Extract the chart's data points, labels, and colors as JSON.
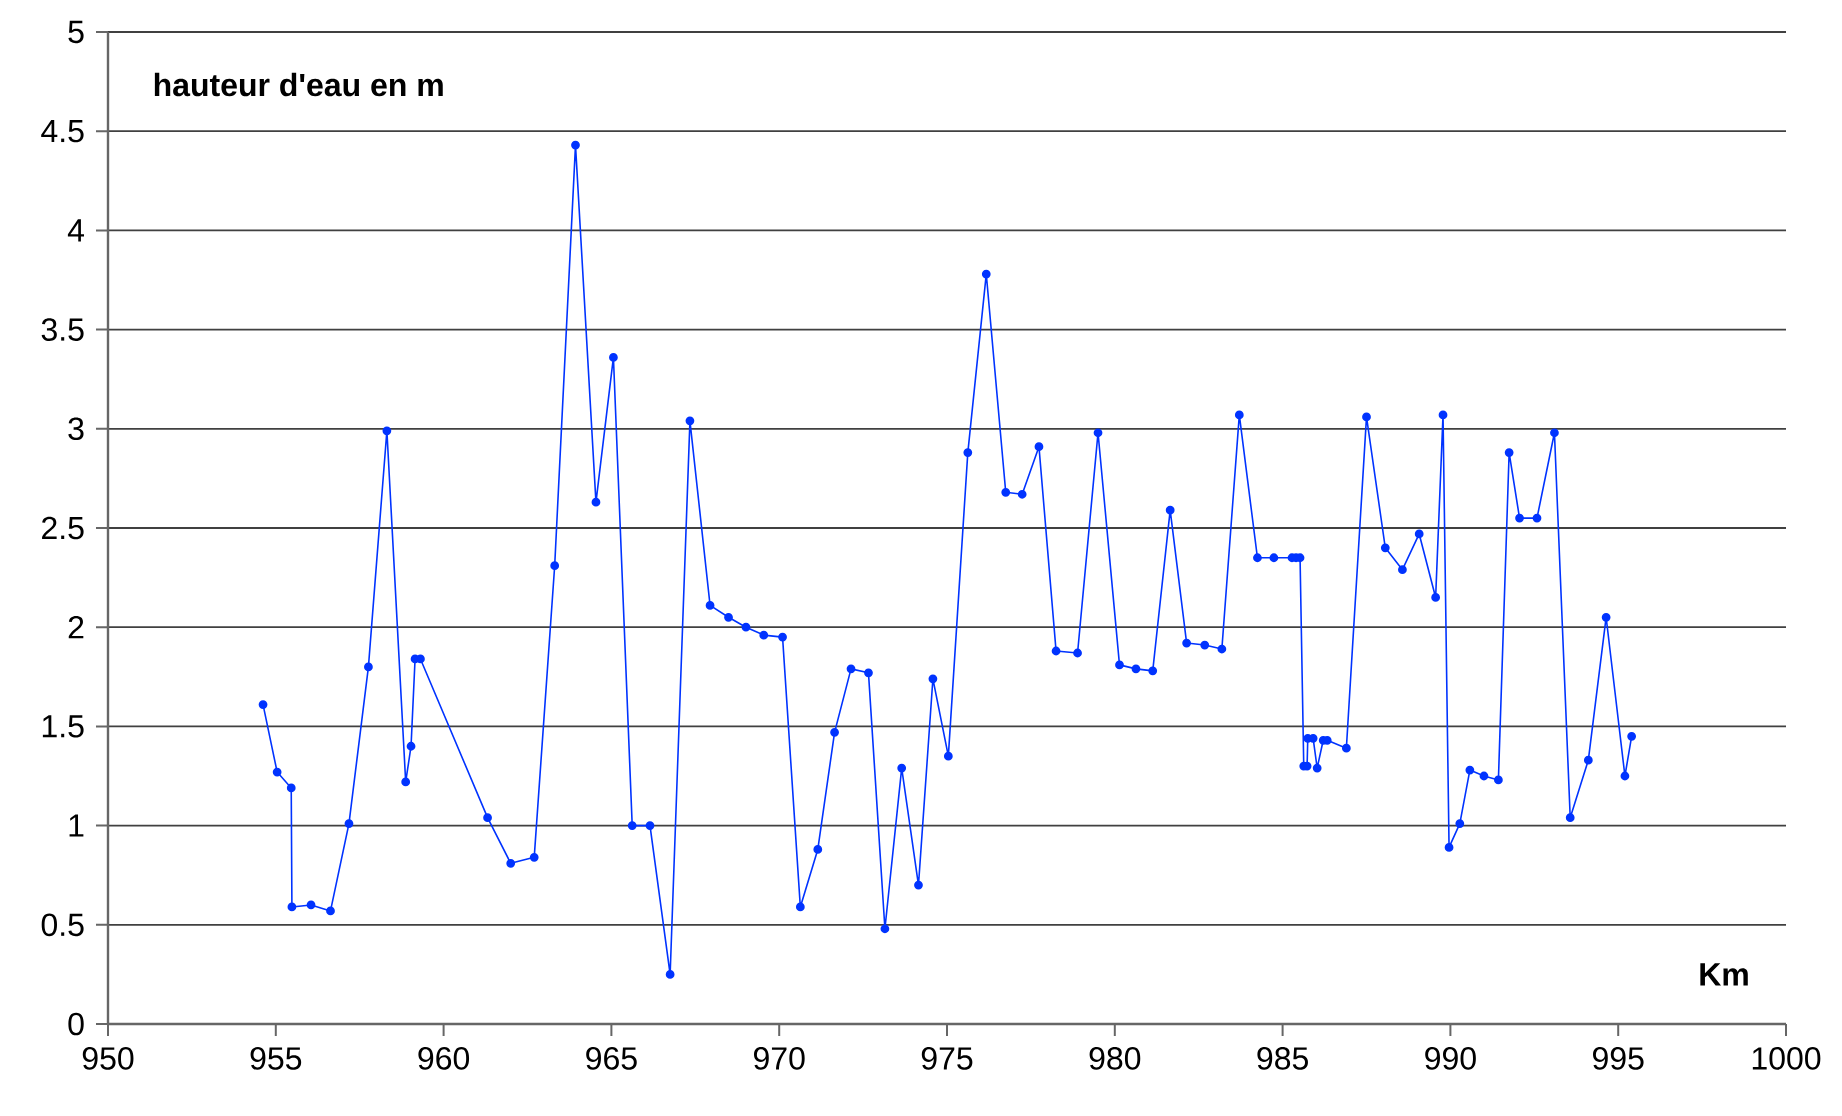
{
  "chart_data": {
    "type": "line",
    "xlabel": "Km",
    "ylabel": "hauteur d'eau en m",
    "x": [
      954.62,
      955.04,
      955.46,
      955.48,
      956.05,
      956.63,
      957.18,
      957.76,
      958.31,
      958.87,
      959.03,
      959.15,
      959.31,
      961.31,
      962.0,
      962.7,
      963.31,
      963.93,
      964.54,
      965.06,
      965.62,
      966.15,
      966.75,
      967.34,
      967.94,
      968.49,
      969.01,
      969.54,
      970.1,
      970.63,
      971.15,
      971.65,
      972.14,
      972.66,
      973.15,
      973.65,
      974.15,
      974.58,
      975.04,
      975.62,
      976.17,
      976.75,
      977.24,
      977.74,
      978.25,
      978.89,
      979.5,
      980.14,
      980.63,
      981.13,
      981.65,
      982.14,
      982.68,
      983.19,
      983.71,
      984.25,
      984.74,
      985.28,
      985.4,
      985.52,
      985.63,
      985.73,
      985.75,
      985.91,
      986.03,
      986.21,
      986.33,
      986.9,
      987.5,
      988.06,
      988.57,
      989.07,
      989.56,
      989.78,
      989.96,
      990.28,
      990.58,
      991.0,
      991.43,
      991.75,
      992.06,
      992.58,
      993.1,
      993.57,
      994.11,
      994.64,
      995.2,
      995.4
    ],
    "values": [
      1.61,
      1.27,
      1.19,
      0.59,
      0.6,
      0.57,
      1.01,
      1.8,
      2.99,
      1.22,
      1.4,
      1.84,
      1.84,
      1.04,
      0.81,
      0.84,
      2.31,
      4.43,
      2.63,
      3.36,
      1.0,
      1.0,
      0.25,
      3.04,
      2.11,
      2.05,
      2.0,
      1.96,
      1.95,
      0.59,
      0.88,
      1.47,
      1.79,
      1.77,
      0.48,
      1.29,
      0.7,
      1.74,
      1.35,
      2.88,
      3.78,
      2.68,
      2.67,
      2.91,
      1.88,
      1.87,
      2.98,
      1.81,
      1.79,
      1.78,
      2.59,
      1.92,
      1.91,
      1.89,
      3.07,
      2.35,
      2.35,
      2.35,
      2.35,
      2.35,
      1.3,
      1.3,
      1.44,
      1.44,
      1.29,
      1.43,
      1.43,
      1.39,
      3.06,
      2.4,
      2.29,
      2.47,
      2.15,
      3.07,
      0.89,
      1.01,
      1.28,
      1.25,
      1.23,
      2.88,
      2.55,
      2.55,
      2.98,
      1.04,
      1.33,
      2.05,
      1.25,
      1.45
    ],
    "color": "#0033ff",
    "marker": "circle",
    "line_style": "solid",
    "grid": "y",
    "xlim": [
      950,
      1000
    ],
    "ylim": [
      0,
      5
    ],
    "xticks": [
      950,
      955,
      960,
      965,
      970,
      975,
      980,
      985,
      990,
      995,
      1000
    ],
    "yticks": [
      0,
      {
        "value": 0.5,
        "label": "0.5"
      },
      1,
      {
        "value": 1.5,
        "label": "1.5"
      },
      2,
      {
        "value": 2.5,
        "label": "2.5"
      },
      3,
      {
        "value": 3.5,
        "label": "3.5"
      },
      4,
      {
        "value": 4.5,
        "label": "4.5"
      },
      5
    ]
  }
}
